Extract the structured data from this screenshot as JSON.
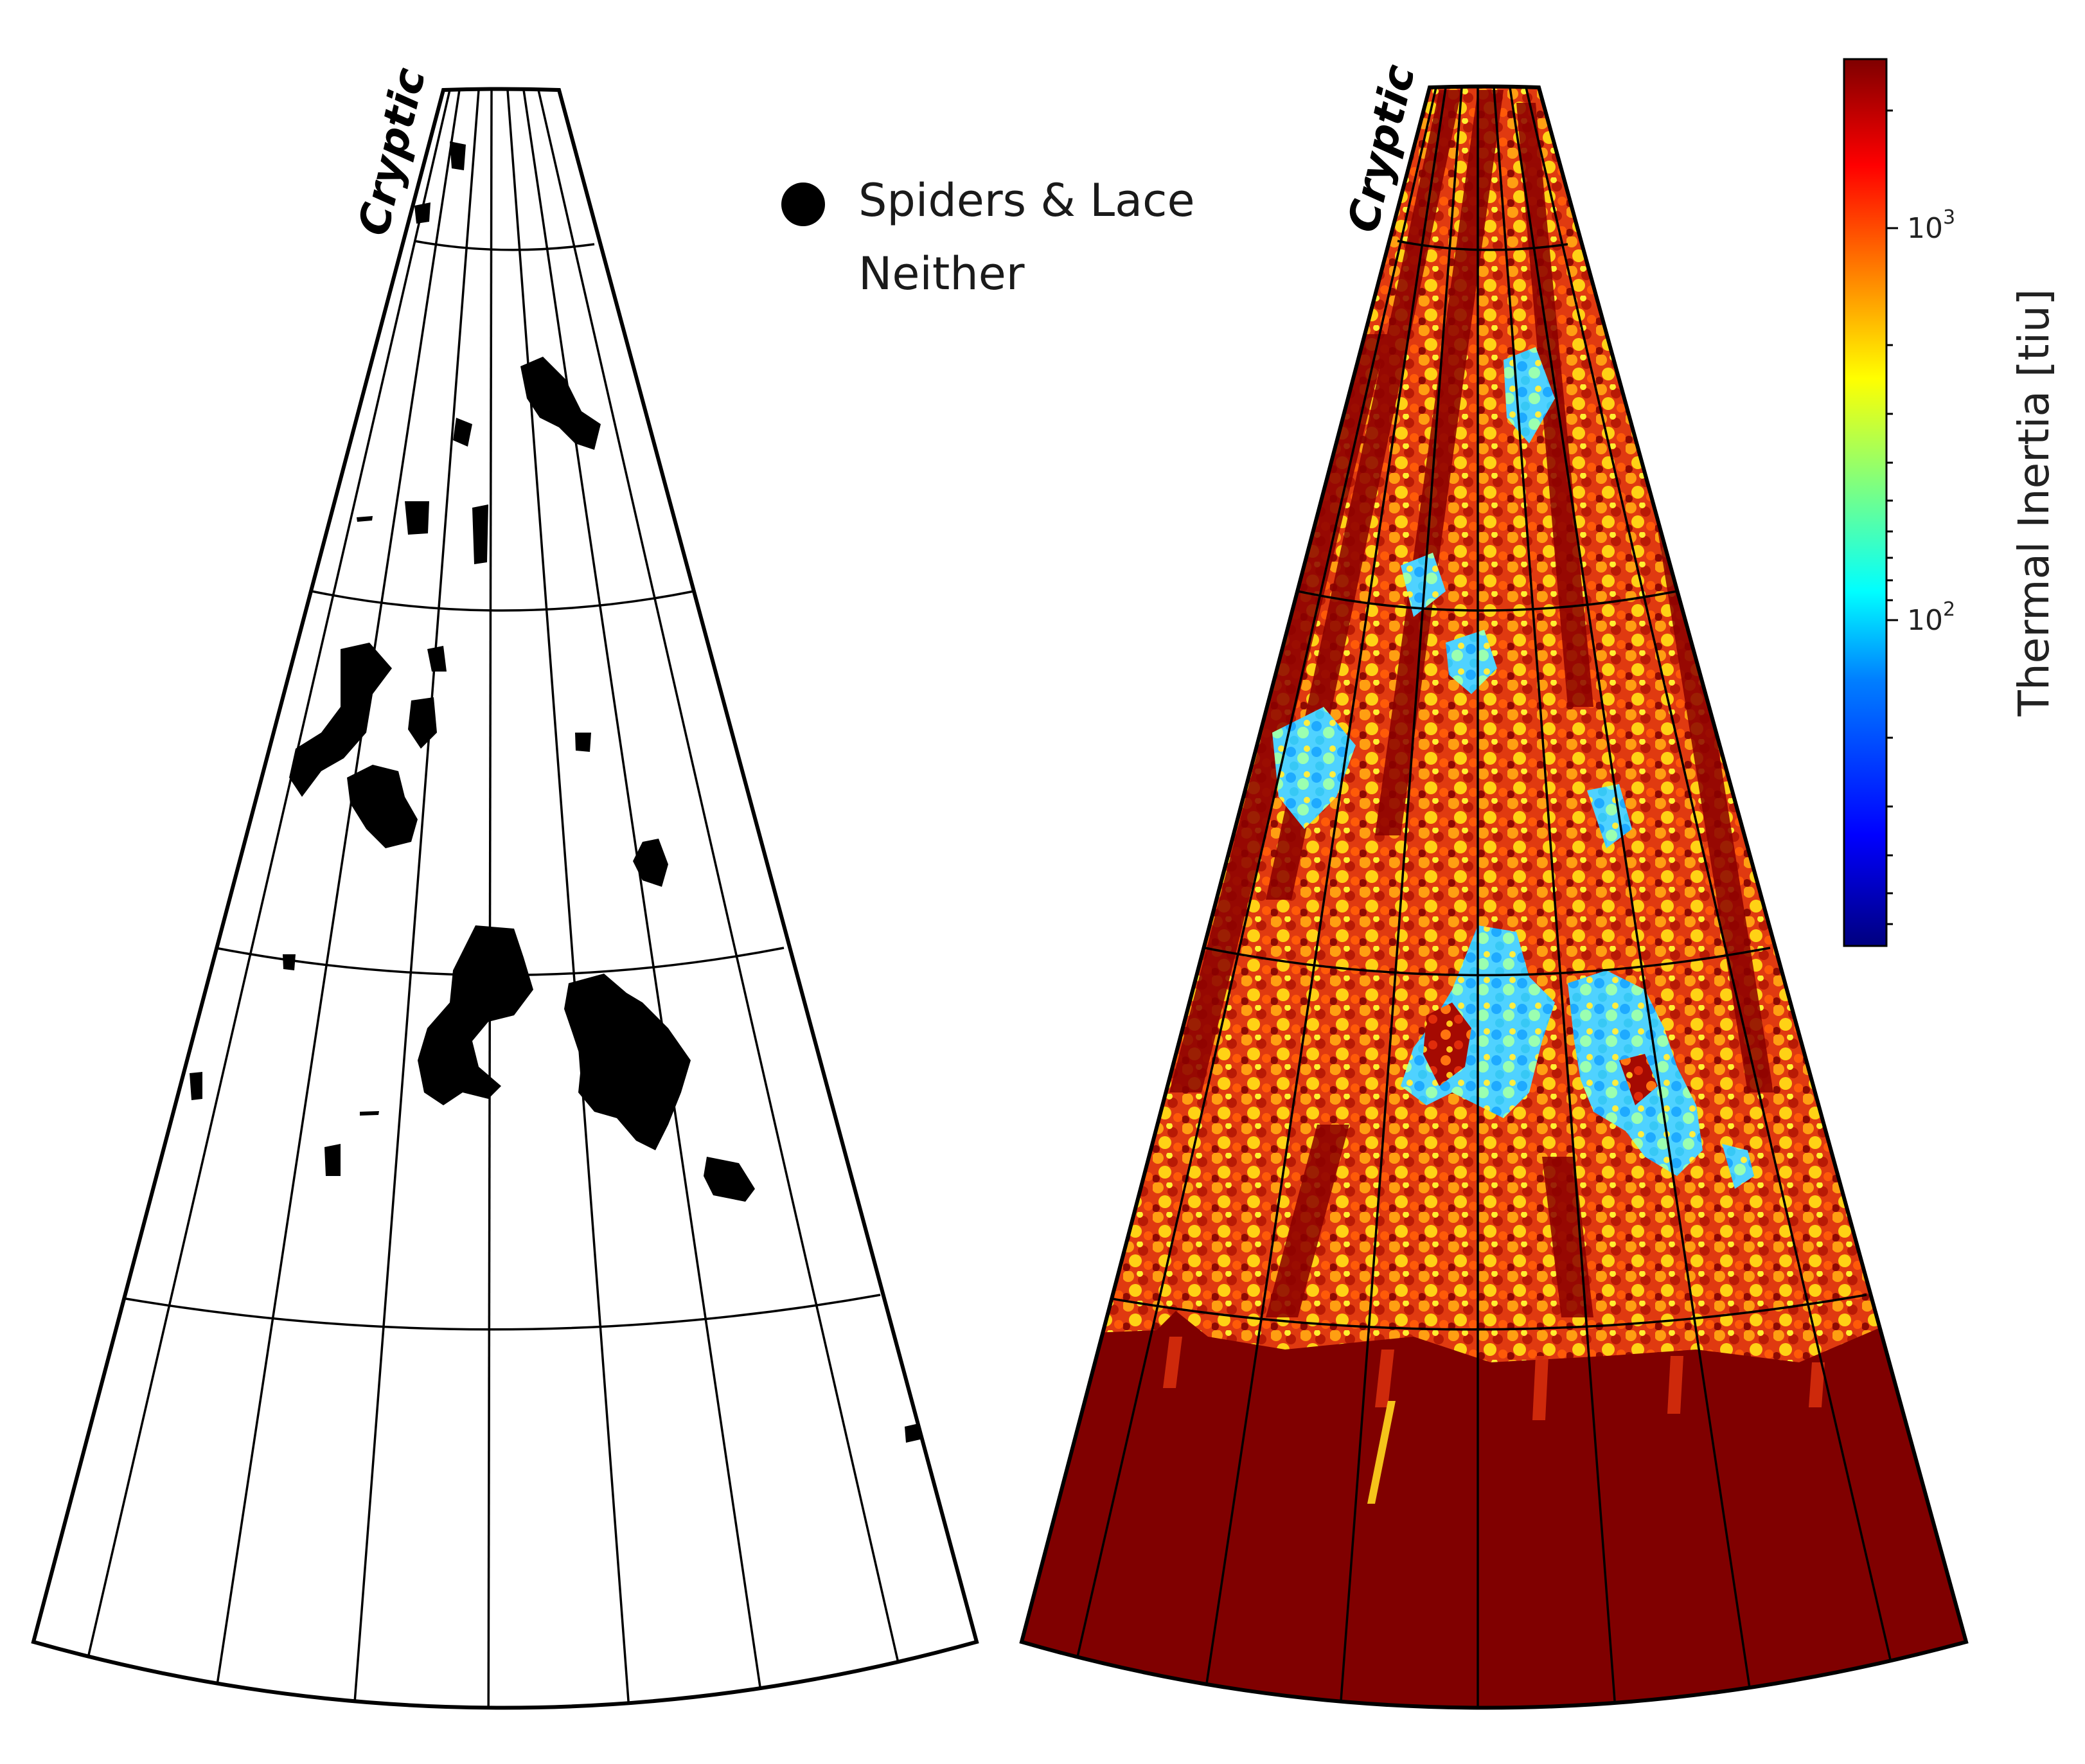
{
  "legend": {
    "spiders_label": "Spiders & Lace",
    "neither_label": "Neither",
    "marker_color": "#000000"
  },
  "left_map": {
    "region_label": "Cryptic",
    "background_color": "#ffffff",
    "patch_color": "#000000"
  },
  "right_map": {
    "region_label": "Cryptic",
    "dominant_color": "#800000"
  },
  "colorbar": {
    "label": "Thermal Inertia [tiu]",
    "scale": "log",
    "colormap": "jet",
    "colors": [
      "#00007f",
      "#0000ff",
      "#007fff",
      "#00ffff",
      "#7fff7f",
      "#ffff00",
      "#ff7f00",
      "#ff0000",
      "#7f0000"
    ],
    "ticks": [
      {
        "base": "10",
        "exp": "3",
        "value": 1000
      },
      {
        "base": "10",
        "exp": "2",
        "value": 100
      }
    ],
    "range": [
      30,
      2500
    ]
  }
}
